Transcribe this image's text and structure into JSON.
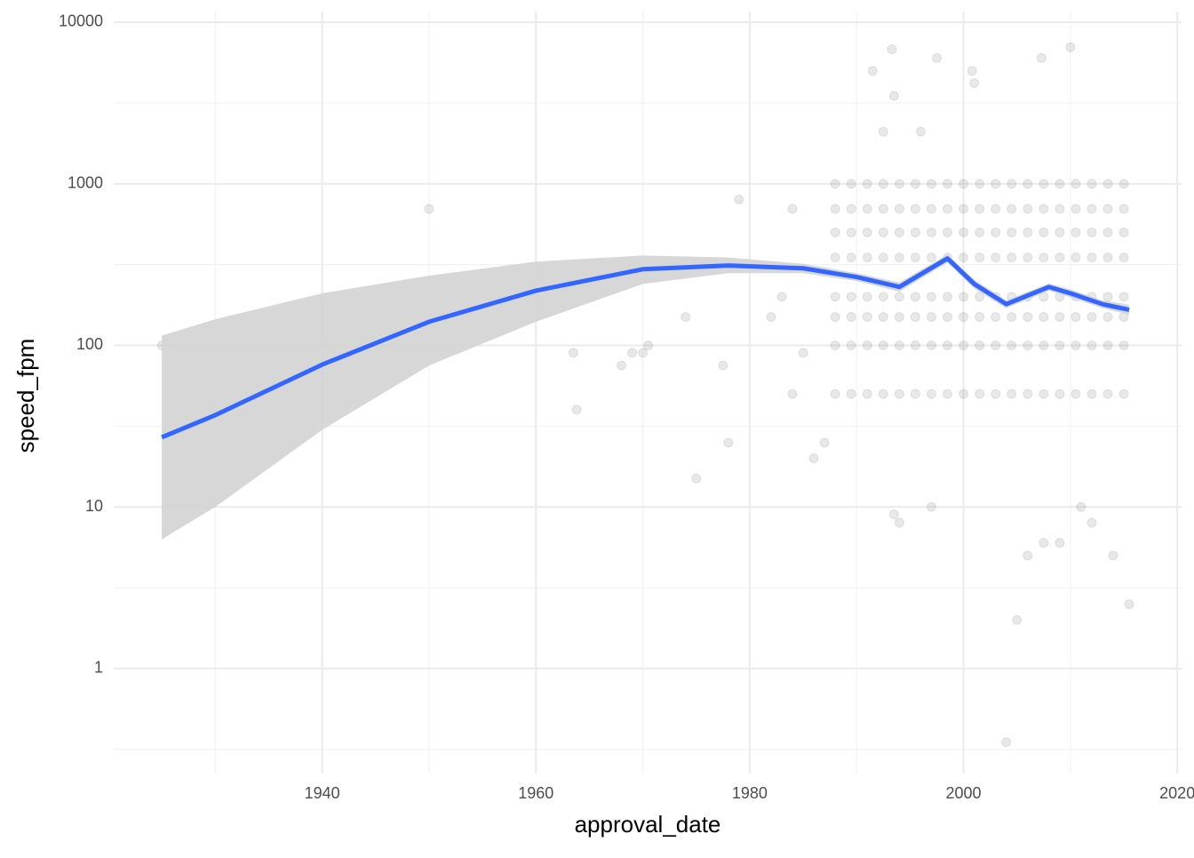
{
  "chart_data": {
    "type": "scatter",
    "x_label": "approval_date",
    "y_label": "speed_fpm",
    "xlim": [
      1920.5,
      2020.4
    ],
    "xticks": [
      1940,
      1960,
      1980,
      2000,
      2020
    ],
    "xminor": [
      1930,
      1950,
      1970,
      1990,
      2010
    ],
    "ylim": [
      0.224,
      11640
    ],
    "yticks": [
      1,
      10,
      100,
      1000,
      10000
    ],
    "yminor": [
      0.316,
      3.16,
      31.6,
      316,
      3162
    ],
    "ylog": true,
    "grid": true,
    "points": {
      "color": "#000000",
      "alpha": 0.09,
      "x": [
        1925,
        1950,
        1963.5,
        1963.8,
        1968,
        1969,
        1970,
        1970.5,
        1974,
        1975,
        1977.5,
        1978,
        1979,
        1993.3,
        1991.5,
        1997.5,
        2000.8,
        2001,
        2007.3,
        2010,
        1993.5,
        1992.5,
        1996,
        2004,
        2005,
        2015.5,
        2014,
        2006,
        2012,
        2009,
        2007.5,
        1993.5,
        1994,
        1997,
        2011,
        1982,
        1983,
        1984,
        1985,
        1986,
        1987,
        1984,
        1988,
        1988,
        1988,
        1988,
        1988,
        1988,
        1988,
        1988,
        1989.5,
        1989.5,
        1989.5,
        1989.5,
        1989.5,
        1989.5,
        1989.5,
        1989.5,
        1991,
        1991,
        1991,
        1991,
        1991,
        1991,
        1991,
        1991,
        1992.5,
        1992.5,
        1992.5,
        1992.5,
        1992.5,
        1992.5,
        1992.5,
        1992.5,
        1994,
        1994,
        1994,
        1994,
        1994,
        1994,
        1994,
        1994,
        1995.5,
        1995.5,
        1995.5,
        1995.5,
        1995.5,
        1995.5,
        1995.5,
        1995.5,
        1997,
        1997,
        1997,
        1997,
        1997,
        1997,
        1997,
        1997,
        1998.5,
        1998.5,
        1998.5,
        1998.5,
        1998.5,
        1998.5,
        1998.5,
        1998.5,
        2000,
        2000,
        2000,
        2000,
        2000,
        2000,
        2000,
        2000,
        2001.5,
        2001.5,
        2001.5,
        2001.5,
        2001.5,
        2001.5,
        2001.5,
        2001.5,
        2003,
        2003,
        2003,
        2003,
        2003,
        2003,
        2003,
        2003,
        2004.5,
        2004.5,
        2004.5,
        2004.5,
        2004.5,
        2004.5,
        2004.5,
        2004.5,
        2006,
        2006,
        2006,
        2006,
        2006,
        2006,
        2006,
        2006,
        2007.5,
        2007.5,
        2007.5,
        2007.5,
        2007.5,
        2007.5,
        2007.5,
        2007.5,
        2009,
        2009,
        2009,
        2009,
        2009,
        2009,
        2009,
        2009,
        2010.5,
        2010.5,
        2010.5,
        2010.5,
        2010.5,
        2010.5,
        2010.5,
        2010.5,
        2012,
        2012,
        2012,
        2012,
        2012,
        2012,
        2012,
        2012,
        2013.5,
        2013.5,
        2013.5,
        2013.5,
        2013.5,
        2013.5,
        2013.5,
        2013.5,
        2015,
        2015,
        2015,
        2015,
        2015,
        2015,
        2015,
        2015
      ],
      "y": [
        100,
        700,
        90,
        40,
        75,
        90,
        90,
        100,
        150,
        15,
        75,
        25,
        800,
        6800,
        5000,
        6000,
        5000,
        4200,
        6000,
        7000,
        3500,
        2100,
        2100,
        0.35,
        2,
        2.5,
        5,
        5,
        8,
        6,
        6,
        9,
        8,
        10,
        10,
        150,
        200,
        700,
        90,
        20,
        25,
        50,
        1000,
        700,
        500,
        350,
        200,
        150,
        100,
        50,
        1000,
        700,
        500,
        350,
        200,
        150,
        100,
        50,
        1000,
        700,
        500,
        350,
        200,
        150,
        100,
        50,
        1000,
        700,
        500,
        350,
        200,
        150,
        100,
        50,
        1000,
        700,
        500,
        350,
        200,
        150,
        100,
        50,
        1000,
        700,
        500,
        350,
        200,
        150,
        100,
        50,
        1000,
        700,
        500,
        350,
        200,
        150,
        100,
        50,
        1000,
        700,
        500,
        350,
        200,
        150,
        100,
        50,
        1000,
        700,
        500,
        350,
        200,
        150,
        100,
        50,
        1000,
        700,
        500,
        350,
        200,
        150,
        100,
        50,
        1000,
        700,
        500,
        350,
        200,
        150,
        100,
        50,
        1000,
        700,
        500,
        350,
        200,
        150,
        100,
        50,
        1000,
        700,
        500,
        350,
        200,
        150,
        100,
        50,
        1000,
        700,
        500,
        350,
        200,
        150,
        100,
        50,
        1000,
        700,
        500,
        350,
        200,
        150,
        100,
        50,
        1000,
        700,
        500,
        350,
        200,
        150,
        100,
        50,
        1000,
        700,
        500,
        350,
        200,
        150,
        100,
        50,
        1000,
        700,
        500,
        350,
        200,
        150,
        100,
        50,
        1000,
        700,
        500,
        350,
        200,
        150,
        100,
        50
      ]
    },
    "smooth": {
      "color": "#3366ff",
      "ribbon_color": "#d3d3d3",
      "x": [
        1925,
        1930,
        1940,
        1950,
        1960,
        1970,
        1978,
        1985,
        1990,
        1994,
        1998.5,
        2001,
        2004,
        2008,
        2010,
        2013,
        2015.5
      ],
      "y": [
        27,
        37,
        76,
        140,
        218,
        296,
        312,
        300,
        265,
        230,
        345,
        240,
        180,
        230,
        210,
        180,
        166
      ],
      "lower": [
        6.3,
        10,
        30,
        75,
        140,
        240,
        280,
        280,
        250,
        215,
        325,
        225,
        170,
        218,
        198,
        170,
        155
      ],
      "upper": [
        115,
        145,
        210,
        270,
        330,
        360,
        350,
        320,
        280,
        245,
        365,
        255,
        190,
        242,
        222,
        190,
        178
      ]
    }
  }
}
